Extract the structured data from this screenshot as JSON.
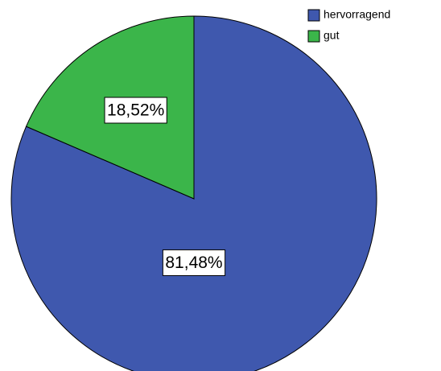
{
  "chart_data": {
    "type": "pie",
    "categories": [
      "hervorragend",
      "gut"
    ],
    "values": [
      81.48,
      18.52
    ],
    "value_labels": [
      "81,48%",
      "18,52%"
    ],
    "colors": [
      "#3f58ae",
      "#3bb54a"
    ]
  }
}
